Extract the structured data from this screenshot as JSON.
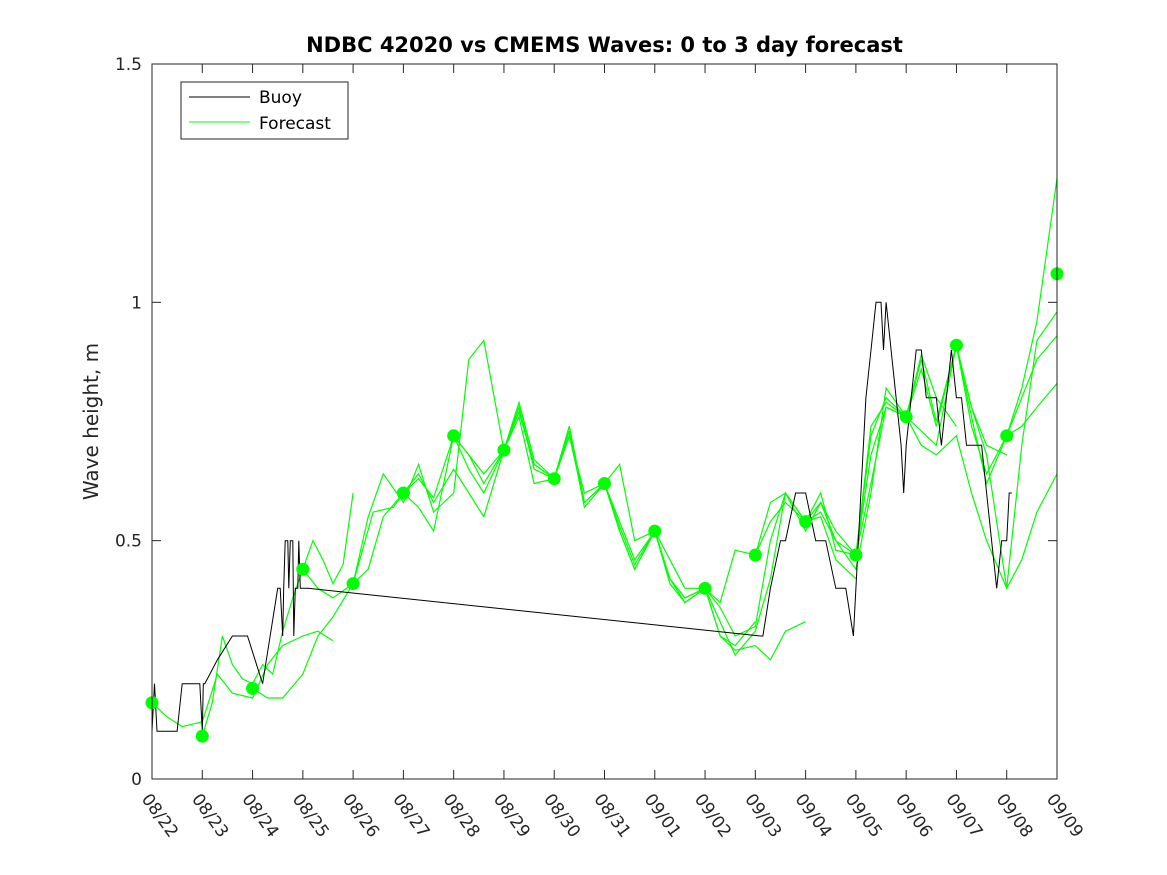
{
  "chart_data": {
    "type": "line",
    "title": "NDBC 42020 vs CMEMS Waves: 0 to 3 day forecast",
    "xlabel": "",
    "ylabel": "Wave height, m",
    "xlim": [
      "08/22",
      "09/09"
    ],
    "ylim": [
      0,
      1.5
    ],
    "x_ticks": [
      "08/22",
      "08/23",
      "08/24",
      "08/25",
      "08/26",
      "08/27",
      "08/28",
      "08/29",
      "08/30",
      "08/31",
      "09/01",
      "09/02",
      "09/03",
      "09/04",
      "09/05",
      "09/06",
      "09/07",
      "09/08",
      "09/09"
    ],
    "y_ticks": [
      "0",
      "0.5",
      "1",
      "1.5"
    ],
    "grid": false,
    "legend": {
      "placement": "top-left",
      "entries": [
        {
          "label": "Buoy",
          "color": "#000000"
        },
        {
          "label": "Forecast",
          "color": "#00ff00"
        }
      ]
    },
    "series": [
      {
        "name": "Buoy",
        "color": "#000000",
        "x": [
          0,
          0.05,
          0.1,
          0.12,
          0.15,
          0.3,
          0.5,
          0.6,
          0.8,
          0.95,
          1.0,
          1.02,
          1.05,
          1.3,
          1.6,
          1.9,
          2.2,
          2.5,
          2.55,
          2.6,
          2.62,
          2.65,
          2.7,
          2.72,
          2.75,
          2.8,
          2.82,
          2.85,
          2.9,
          2.92,
          2.95,
          3.0,
          3.05,
          3.1,
          12.1,
          12.15,
          12.3,
          12.5,
          12.6,
          12.8,
          13.0,
          13.2,
          13.4,
          13.6,
          13.8,
          13.95,
          14.0,
          14.1,
          14.2,
          14.3,
          14.4,
          14.5,
          14.55,
          14.6,
          14.7,
          14.8,
          14.9,
          14.95,
          15.0,
          15.1,
          15.2,
          15.3,
          15.4,
          15.5,
          15.6,
          15.7,
          15.8,
          15.9,
          16.0,
          16.1,
          16.2,
          16.3,
          16.4,
          16.5,
          16.6,
          16.7,
          16.8,
          16.9,
          17.0,
          17.05,
          17.1
        ],
        "y": [
          0.1,
          0.2,
          0.1,
          0.1,
          0.1,
          0.1,
          0.1,
          0.2,
          0.2,
          0.2,
          0.1,
          0.2,
          0.2,
          0.25,
          0.3,
          0.3,
          0.2,
          0.4,
          0.4,
          0.3,
          0.4,
          0.5,
          0.5,
          0.4,
          0.5,
          0.5,
          0.3,
          0.4,
          0.4,
          0.5,
          0.4,
          0.4,
          0.4,
          0.4,
          0.3,
          0.3,
          0.4,
          0.5,
          0.5,
          0.6,
          0.6,
          0.5,
          0.5,
          0.4,
          0.4,
          0.3,
          0.4,
          0.6,
          0.8,
          0.9,
          1.0,
          1.0,
          0.9,
          1.0,
          0.9,
          0.8,
          0.7,
          0.6,
          0.7,
          0.8,
          0.9,
          0.9,
          0.8,
          0.8,
          0.8,
          0.7,
          0.8,
          0.9,
          0.8,
          0.8,
          0.7,
          0.7,
          0.7,
          0.7,
          0.6,
          0.5,
          0.4,
          0.5,
          0.5,
          0.6,
          0.6
        ]
      },
      {
        "name": "Forecast",
        "color": "#00ff00",
        "runs": [
          {
            "x": [
              0,
              0.3,
              0.6,
              1.0,
              1.3,
              1.6,
              2.0,
              2.3,
              2.6,
              3.0,
              3.3,
              3.6
            ],
            "y": [
              0.16,
              0.13,
              0.11,
              0.12,
              0.22,
              0.18,
              0.17,
              0.24,
              0.28,
              0.3,
              0.31,
              0.29
            ]
          },
          {
            "x": [
              1.0,
              1.2,
              1.4,
              1.6,
              1.8,
              2.0,
              2.2,
              2.4,
              2.6,
              2.8,
              3.0,
              3.2,
              3.4,
              3.6,
              3.8,
              4.0
            ],
            "y": [
              0.09,
              0.16,
              0.3,
              0.24,
              0.21,
              0.2,
              0.24,
              0.22,
              0.31,
              0.38,
              0.44,
              0.5,
              0.46,
              0.41,
              0.45,
              0.6
            ]
          },
          {
            "x": [
              2.0,
              2.3,
              2.6,
              3.0,
              3.3,
              3.6,
              4.0,
              4.4,
              4.8,
              5.0,
              5.3,
              5.6,
              6.0,
              6.3,
              6.6,
              7.0
            ],
            "y": [
              0.19,
              0.17,
              0.17,
              0.22,
              0.3,
              0.34,
              0.41,
              0.56,
              0.57,
              0.6,
              0.64,
              0.58,
              0.65,
              0.6,
              0.55,
              0.69
            ]
          },
          {
            "x": [
              3.0,
              3.3,
              3.6,
              4.0,
              4.3,
              4.6,
              5.0,
              5.3,
              5.6,
              6.0,
              6.3,
              6.6,
              7.0,
              7.3,
              7.6,
              8.0
            ],
            "y": [
              0.44,
              0.4,
              0.38,
              0.41,
              0.55,
              0.64,
              0.58,
              0.66,
              0.56,
              0.6,
              0.88,
              0.92,
              0.69,
              0.78,
              0.65,
              0.63
            ]
          },
          {
            "x": [
              4.0,
              4.3,
              4.6,
              5.0,
              5.3,
              5.6,
              6.0,
              6.3,
              6.6,
              7.0,
              7.3,
              7.6,
              8.0,
              8.3,
              8.6,
              9.0
            ],
            "y": [
              0.41,
              0.44,
              0.55,
              0.6,
              0.57,
              0.52,
              0.72,
              0.68,
              0.64,
              0.69,
              0.76,
              0.62,
              0.63,
              0.74,
              0.58,
              0.62
            ]
          },
          {
            "x": [
              5.0,
              5.3,
              5.6,
              6.0,
              6.3,
              6.6,
              7.0,
              7.3,
              7.6,
              8.0,
              8.3,
              8.6,
              9.0,
              9.3,
              9.6,
              10.0
            ],
            "y": [
              0.6,
              0.63,
              0.59,
              0.72,
              0.65,
              0.6,
              0.69,
              0.77,
              0.66,
              0.63,
              0.72,
              0.6,
              0.62,
              0.53,
              0.45,
              0.52
            ]
          },
          {
            "x": [
              6.0,
              6.3,
              6.6,
              7.0,
              7.3,
              7.6,
              8.0,
              8.3,
              8.6,
              9.0,
              9.3,
              9.6,
              10.0,
              10.3,
              10.6,
              11.0
            ],
            "y": [
              0.72,
              0.68,
              0.62,
              0.69,
              0.78,
              0.66,
              0.63,
              0.73,
              0.57,
              0.62,
              0.52,
              0.44,
              0.52,
              0.42,
              0.37,
              0.4
            ]
          },
          {
            "x": [
              7.0,
              7.3,
              7.6,
              8.0,
              8.3,
              8.6,
              9.0,
              9.3,
              9.6,
              10.0,
              10.3,
              10.6,
              11.0,
              11.3,
              11.6,
              12.0
            ],
            "y": [
              0.69,
              0.79,
              0.67,
              0.63,
              0.72,
              0.58,
              0.62,
              0.52,
              0.44,
              0.52,
              0.41,
              0.37,
              0.4,
              0.3,
              0.28,
              0.33
            ]
          },
          {
            "x": [
              8.0,
              8.3,
              8.6,
              9.0,
              9.3,
              9.6,
              10.0,
              10.3,
              10.6,
              11.0,
              11.3,
              11.6,
              12.0,
              12.3,
              12.6,
              13.0
            ],
            "y": [
              0.63,
              0.74,
              0.58,
              0.62,
              0.54,
              0.46,
              0.52,
              0.42,
              0.38,
              0.4,
              0.3,
              0.27,
              0.28,
              0.25,
              0.31,
              0.33
            ]
          },
          {
            "x": [
              9.0,
              9.3,
              9.6,
              10.0,
              10.3,
              10.6,
              11.0,
              11.3,
              11.6,
              12.0,
              12.3,
              12.6,
              13.0,
              13.3,
              13.6,
              14.0
            ],
            "y": [
              0.62,
              0.66,
              0.5,
              0.52,
              0.46,
              0.4,
              0.4,
              0.33,
              0.26,
              0.31,
              0.42,
              0.6,
              0.54,
              0.55,
              0.46,
              0.42
            ]
          },
          {
            "x": [
              10.0,
              10.3,
              10.6,
              11.0,
              11.3,
              11.6,
              12.0,
              12.3,
              12.6,
              13.0,
              13.3,
              13.6,
              14.0,
              14.3,
              14.6,
              15.0
            ],
            "y": [
              0.52,
              0.42,
              0.38,
              0.4,
              0.36,
              0.3,
              0.32,
              0.5,
              0.6,
              0.52,
              0.58,
              0.5,
              0.44,
              0.6,
              0.82,
              0.76
            ]
          },
          {
            "x": [
              11.0,
              11.3,
              11.6,
              12.0,
              12.3,
              12.6,
              13.0,
              13.3,
              13.6,
              14.0,
              14.3,
              14.6,
              15.0,
              15.3,
              15.6,
              16.0
            ],
            "y": [
              0.4,
              0.37,
              0.48,
              0.47,
              0.58,
              0.6,
              0.54,
              0.58,
              0.52,
              0.47,
              0.62,
              0.78,
              0.76,
              0.89,
              0.8,
              0.74
            ]
          },
          {
            "x": [
              12.0,
              12.3,
              12.6,
              13.0,
              13.3,
              13.6,
              14.0,
              14.3,
              14.6,
              15.0,
              15.3,
              15.6,
              16.0,
              16.3,
              16.6,
              17.0
            ],
            "y": [
              0.47,
              0.54,
              0.58,
              0.54,
              0.6,
              0.48,
              0.47,
              0.72,
              0.8,
              0.76,
              0.88,
              0.75,
              0.91,
              0.78,
              0.7,
              0.68
            ]
          },
          {
            "x": [
              13.0,
              13.3,
              13.6,
              14.0,
              14.3,
              14.6,
              15.0,
              15.3,
              15.6,
              16.0,
              16.3,
              16.6,
              17.0,
              17.3,
              17.6,
              18.0
            ],
            "y": [
              0.54,
              0.56,
              0.5,
              0.47,
              0.68,
              0.78,
              0.76,
              0.86,
              0.74,
              0.91,
              0.78,
              0.68,
              0.4,
              0.7,
              0.92,
              0.98
            ]
          },
          {
            "x": [
              14.0,
              14.3,
              14.6,
              15.0,
              15.3,
              15.6,
              16.0,
              16.3,
              16.6,
              17.0,
              17.3,
              17.6,
              18.0
            ],
            "y": [
              0.47,
              0.74,
              0.79,
              0.76,
              0.73,
              0.7,
              0.91,
              0.74,
              0.64,
              0.72,
              0.82,
              0.96,
              1.26
            ]
          },
          {
            "x": [
              15.0,
              15.3,
              15.6,
              16.0,
              16.3,
              16.6,
              17.0,
              17.3,
              17.6,
              18.0
            ],
            "y": [
              0.76,
              0.7,
              0.68,
              0.72,
              0.6,
              0.5,
              0.4,
              0.46,
              0.56,
              0.64
            ]
          },
          {
            "x": [
              16.0,
              16.3,
              16.6,
              17.0,
              17.3,
              17.6,
              18.0
            ],
            "y": [
              0.91,
              0.76,
              0.62,
              0.72,
              0.74,
              0.78,
              0.83
            ]
          },
          {
            "x": [
              17.0,
              17.3,
              17.6,
              18.0
            ],
            "y": [
              0.72,
              0.8,
              0.88,
              0.93
            ]
          }
        ],
        "markers": {
          "x": [
            0,
            1,
            2,
            3,
            4,
            5,
            6,
            7,
            8,
            9,
            10,
            11,
            12,
            13,
            14,
            15,
            16,
            17,
            18
          ],
          "y": [
            0.16,
            0.09,
            0.19,
            0.44,
            0.41,
            0.6,
            0.72,
            0.69,
            0.63,
            0.62,
            0.52,
            0.4,
            0.47,
            0.54,
            0.47,
            0.76,
            0.91,
            0.72,
            1.06
          ]
        }
      }
    ]
  }
}
